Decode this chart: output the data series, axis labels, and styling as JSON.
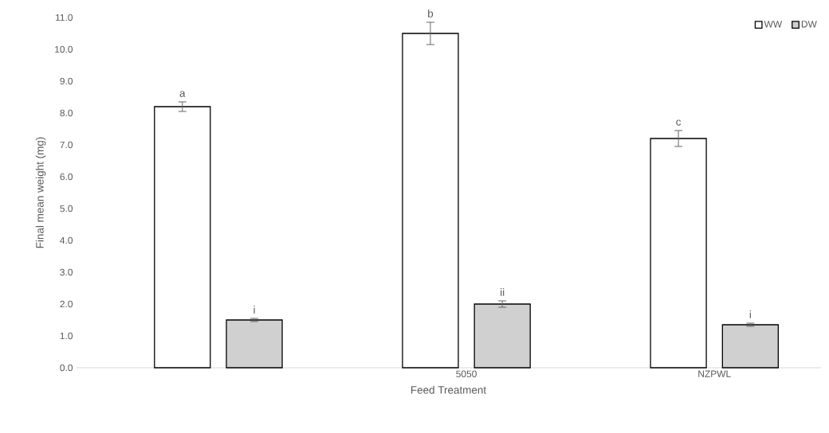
{
  "chart_data": {
    "type": "bar",
    "xlabel": "Feed Treatment",
    "ylabel": "Final mean weight (mg)",
    "categories": [
      null,
      "5050",
      "NZPWL"
    ],
    "series": [
      {
        "name": "WW",
        "color": "#ffffff",
        "values": [
          8.2,
          10.5,
          7.2
        ],
        "errors": [
          0.15,
          0.35,
          0.25
        ]
      },
      {
        "name": "DW",
        "color": "#d0d0d0",
        "values": [
          1.5,
          2.0,
          1.35
        ],
        "errors": [
          0.05,
          0.1,
          0.05
        ]
      }
    ],
    "ylim": [
      0,
      11
    ],
    "yticks": [
      {
        "value": 0,
        "label": "0.0"
      },
      {
        "value": 1,
        "label": "1.0"
      },
      {
        "value": 2,
        "label": "2.0"
      },
      {
        "value": 3,
        "label": "3.0"
      },
      {
        "value": 4,
        "label": "4.0"
      },
      {
        "value": 5,
        "label": "5.0"
      },
      {
        "value": 6,
        "label": "6.0"
      },
      {
        "value": 7,
        "label": "7.0"
      },
      {
        "value": 8,
        "label": "8.0"
      },
      {
        "value": 9,
        "label": "9.0"
      },
      {
        "value": 10,
        "label": "10.0"
      },
      {
        "value": 11,
        "label": "11.0"
      }
    ],
    "grid": false,
    "legend": "top right",
    "annotations": [
      "a",
      "i",
      "b",
      "ii",
      "c",
      "i"
    ]
  }
}
